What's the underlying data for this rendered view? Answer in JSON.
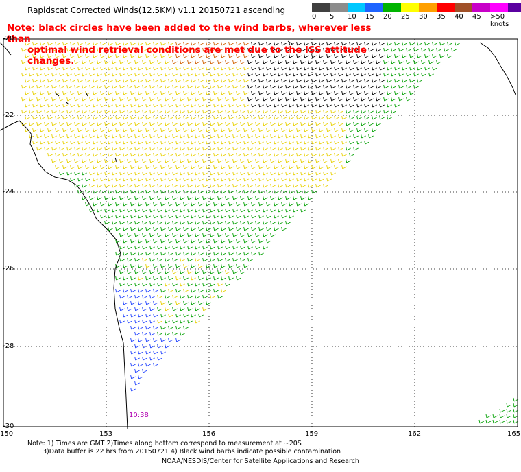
{
  "title": "Rapidscat Corrected Winds(12.5KM) v1.1 20150721 ascending",
  "note_line1": "Note: black circles have been added to the wind barbs, wherever less than",
  "note_line2": "optimal wind retrieval conditions are met due to the ISS attitude changes.",
  "legend": {
    "labels": [
      "0",
      "5",
      "10",
      "15",
      "20",
      "25",
      "30",
      "35",
      "40",
      "45",
      ">50 knots"
    ],
    "colors": [
      "#404040",
      "#8c8c8c",
      "#00c8ff",
      "#1e64ff",
      "#00b400",
      "#ffff00",
      "#ffa000",
      "#ff0000",
      "#a05028",
      "#c800c8",
      "#ff00ff",
      "#5a00a0"
    ]
  },
  "lat_labels": [
    "-20",
    "-22",
    "-24",
    "-26",
    "-28",
    "-30"
  ],
  "lon_labels": [
    "150",
    "153",
    "156",
    "159",
    "162",
    "165"
  ],
  "swath_time": "10:38",
  "footer_line1": "Note: 1) Times are GMT 2)Times along bottom correspond to measurement at ~20S",
  "footer_line2": "3)Data buffer is 22 hrs from 20150721 4) Black wind barbs indicate possible contamination",
  "credit": "NOAA/NESDIS/Center for Satellite Applications and Research",
  "colors": {
    "coast": "#000000",
    "grid": "#000000"
  }
}
